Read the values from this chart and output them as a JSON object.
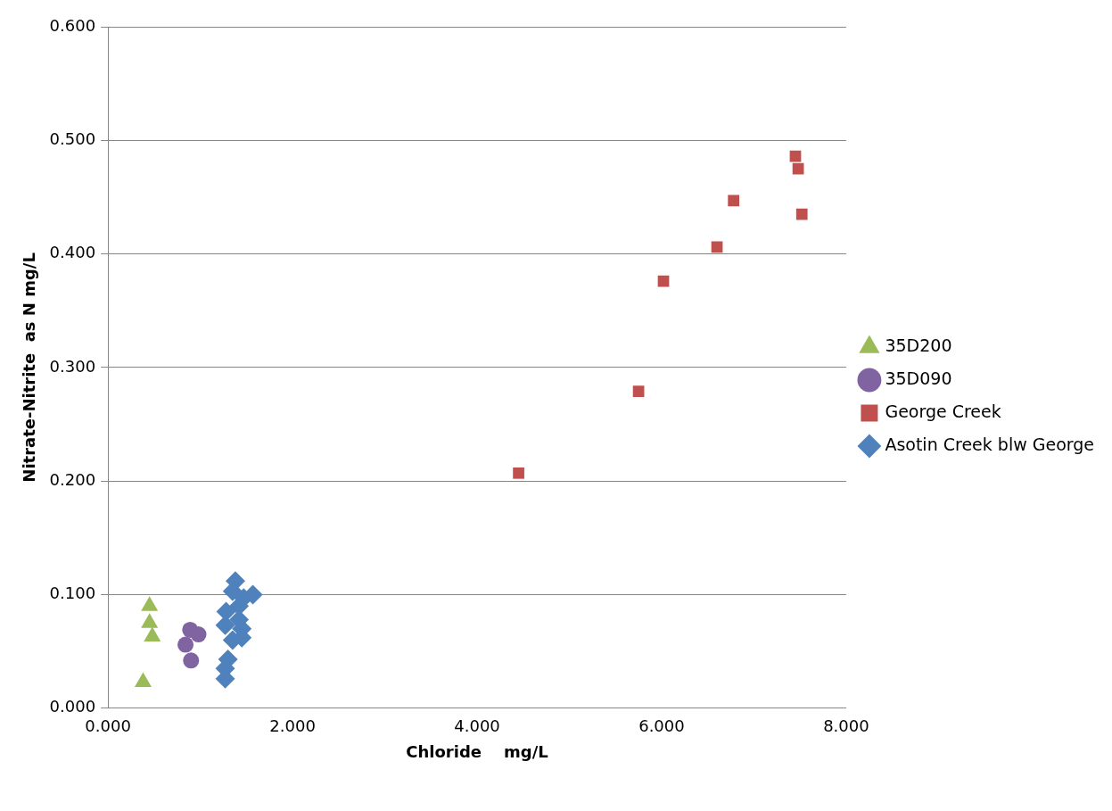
{
  "chart_data": {
    "type": "scatter",
    "xlabel": "Chloride    mg/L",
    "ylabel": "Nitrate-Nitrite  as N mg/L",
    "xlim": [
      0,
      8
    ],
    "xticks": [
      {
        "value": 0,
        "label": "0.000"
      },
      {
        "value": 2,
        "label": "2.000"
      },
      {
        "value": 4,
        "label": "4.000"
      },
      {
        "value": 6,
        "label": "6.000"
      },
      {
        "value": 8,
        "label": "8.000"
      }
    ],
    "ylim": [
      0,
      0.6
    ],
    "yticks": [
      {
        "value": 0,
        "label": "0.000"
      },
      {
        "value": 0.1,
        "label": "0.100"
      },
      {
        "value": 0.2,
        "label": "0.200"
      },
      {
        "value": 0.3,
        "label": "0.300"
      },
      {
        "value": 0.4,
        "label": "0.400"
      },
      {
        "value": 0.5,
        "label": "0.500"
      },
      {
        "value": 0.6,
        "label": "0.600"
      }
    ],
    "grid": "y",
    "legend": "right",
    "series": [
      {
        "name": "35D200",
        "color": "#9bbb59",
        "marker": "triangle",
        "x": [
          0.45,
          0.45,
          0.48,
          0.38
        ],
        "values": [
          0.09,
          0.075,
          0.063,
          0.023
        ]
      },
      {
        "name": "35D090",
        "color": "#8064a2",
        "marker": "circle",
        "x": [
          0.89,
          0.98,
          0.84,
          0.9
        ],
        "values": [
          0.069,
          0.065,
          0.056,
          0.042
        ]
      },
      {
        "name": "George Creek",
        "color": "#c0504d",
        "marker": "square",
        "x": [
          4.45,
          5.75,
          6.02,
          6.6,
          6.78,
          7.45,
          7.48,
          7.52
        ],
        "values": [
          0.207,
          0.279,
          0.376,
          0.406,
          0.447,
          0.486,
          0.475,
          0.435
        ]
      },
      {
        "name": "Asotin Creek blw George",
        "color": "#4f81bd",
        "marker": "diamond",
        "x": [
          1.38,
          1.35,
          1.57,
          1.47,
          1.42,
          1.28,
          1.42,
          1.27,
          1.45,
          1.45,
          1.35,
          1.3,
          1.27,
          1.27
        ],
        "values": [
          0.112,
          0.103,
          0.1,
          0.097,
          0.09,
          0.085,
          0.078,
          0.073,
          0.07,
          0.062,
          0.06,
          0.043,
          0.035,
          0.026
        ]
      }
    ]
  }
}
